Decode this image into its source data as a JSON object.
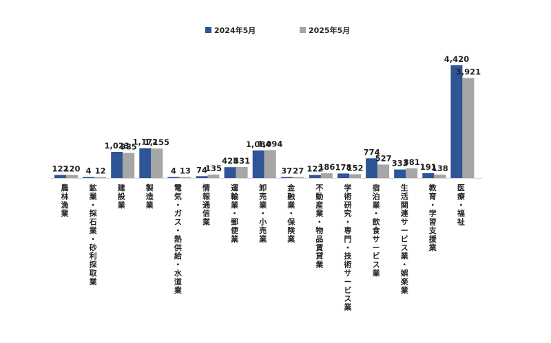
{
  "chart_data": {
    "type": "bar",
    "categories": [
      "農林漁業",
      "鉱業・採石業・砂利採取業",
      "建設業",
      "製造業",
      "電気・ガス・熱供給・水道業",
      "情報通信業",
      "運輸業・郵便業",
      "卸売業・小売業",
      "金融業・保険業",
      "不動産業・物品賃貸業",
      "学術研究・専門・技術サービス業",
      "宿泊業・飲食サービス業",
      "生活関連サービス業・娯楽業",
      "教育・学習支援業",
      "医療・福祉"
    ],
    "series": [
      {
        "name": "2024年5月",
        "color": "#2f5597",
        "values": [
          122,
          4,
          1023,
          1172,
          4,
          74,
          425,
          1084,
          37,
          122,
          178,
          774,
          333,
          191,
          4420
        ],
        "labels": [
          "122",
          "4",
          "1,023",
          "1,172",
          "4",
          "74",
          "425",
          "1,084",
          "37",
          "122",
          "178",
          "774",
          "333",
          "191",
          "4,420"
        ]
      },
      {
        "name": "2025年5月",
        "color": "#a6a6a6",
        "values": [
          120,
          12,
          985,
          1155,
          13,
          135,
          431,
          1094,
          27,
          186,
          152,
          527,
          381,
          138,
          3921
        ],
        "labels": [
          "120",
          "12",
          "985",
          "1,155",
          "13",
          "135",
          "431",
          "1,094",
          "27",
          "186",
          "152",
          "527",
          "381",
          "138",
          "3,921"
        ]
      }
    ],
    "ylim": [
      0,
      4420
    ],
    "grid": false,
    "legend": "top-center"
  }
}
